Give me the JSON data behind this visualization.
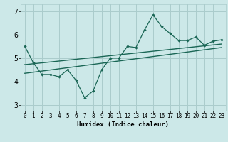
{
  "title": "",
  "xlabel": "Humidex (Indice chaleur)",
  "bg_color": "#cce8e8",
  "grid_color": "#aacccc",
  "line_color": "#1a6655",
  "xlim": [
    -0.5,
    23.5
  ],
  "ylim": [
    2.75,
    7.3
  ],
  "xticks": [
    0,
    1,
    2,
    3,
    4,
    5,
    6,
    7,
    8,
    9,
    10,
    11,
    12,
    13,
    14,
    15,
    16,
    17,
    18,
    19,
    20,
    21,
    22,
    23
  ],
  "yticks": [
    3,
    4,
    5,
    6,
    7
  ],
  "data_x": [
    0,
    1,
    2,
    3,
    4,
    5,
    6,
    7,
    8,
    9,
    10,
    11,
    12,
    13,
    14,
    15,
    16,
    17,
    18,
    19,
    20,
    21,
    22,
    23
  ],
  "data_y": [
    5.5,
    4.8,
    4.3,
    4.3,
    4.2,
    4.5,
    4.05,
    3.3,
    3.6,
    4.5,
    5.0,
    5.0,
    5.5,
    5.45,
    6.2,
    6.85,
    6.35,
    6.05,
    5.75,
    5.75,
    5.9,
    5.55,
    5.72,
    5.78
  ],
  "trend1_x": [
    0,
    23
  ],
  "trend1_y": [
    4.72,
    5.6
  ],
  "trend2_x": [
    0,
    23
  ],
  "trend2_y": [
    4.35,
    5.45
  ]
}
